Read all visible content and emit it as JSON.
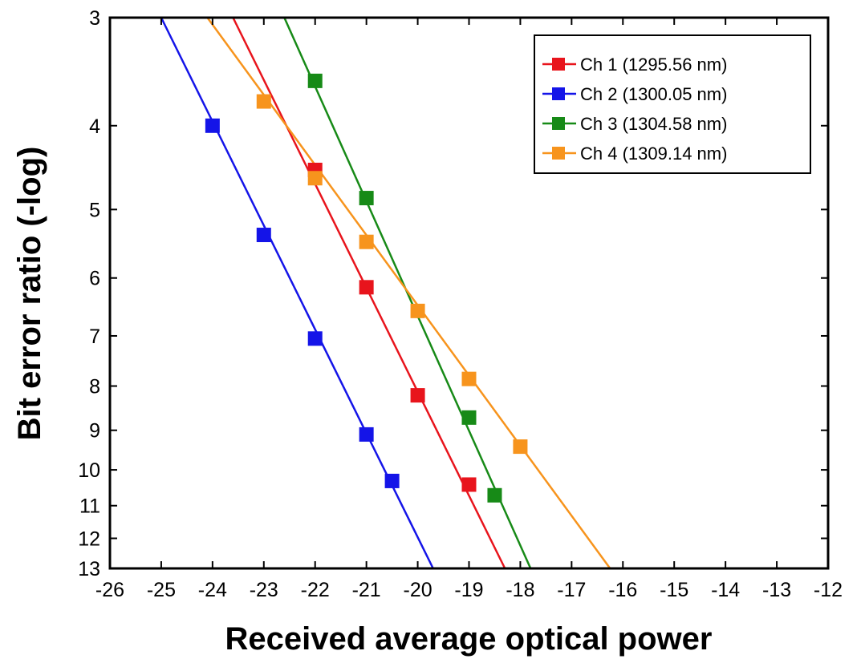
{
  "chart_data": {
    "type": "line",
    "xlabel": "Received average optical power",
    "ylabel": "Bit error ratio (-log)",
    "xlim": [
      -26,
      -12
    ],
    "xticks": [
      -26,
      -25,
      -24,
      -23,
      -22,
      -21,
      -20,
      -19,
      -18,
      -17,
      -16,
      -15,
      -14,
      -13,
      -12
    ],
    "ylim": [
      3,
      13
    ],
    "y_scale": "log of -log(BER) (tick labels show -log BER)",
    "yticks": [
      3,
      4,
      5,
      6,
      7,
      8,
      9,
      10,
      11,
      12,
      13
    ],
    "grid": false,
    "legend_position": "top-right",
    "series": [
      {
        "name": "Ch 1 (1295.56 nm)",
        "color": "#e8141c",
        "points": [
          [
            -22,
            4.5
          ],
          [
            -21,
            6.15
          ],
          [
            -20,
            8.2
          ],
          [
            -19,
            10.4
          ]
        ],
        "fit_line": [
          [
            -23.6,
            3.0
          ],
          [
            -18.3,
            13.0
          ]
        ]
      },
      {
        "name": "Ch 2 (1300.05 nm)",
        "color": "#1414e8",
        "points": [
          [
            -24,
            4.0
          ],
          [
            -23,
            5.35
          ],
          [
            -22,
            7.05
          ],
          [
            -21,
            9.1
          ],
          [
            -20.5,
            10.3
          ]
        ],
        "fit_line": [
          [
            -25.0,
            3.0
          ],
          [
            -19.7,
            13.0
          ]
        ]
      },
      {
        "name": "Ch 3 (1304.58 nm)",
        "color": "#178a17",
        "points": [
          [
            -22,
            3.55
          ],
          [
            -21,
            4.85
          ],
          [
            -19,
            8.7
          ],
          [
            -18.5,
            10.7
          ]
        ],
        "fit_line": [
          [
            -22.6,
            3.0
          ],
          [
            -17.8,
            13.0
          ]
        ]
      },
      {
        "name": "Ch 4 (1309.14 nm)",
        "color": "#f7941d",
        "points": [
          [
            -23,
            3.75
          ],
          [
            -22,
            4.6
          ],
          [
            -21,
            5.45
          ],
          [
            -20,
            6.55
          ],
          [
            -19,
            7.85
          ],
          [
            -18,
            9.4
          ]
        ],
        "fit_line": [
          [
            -24.1,
            3.0
          ],
          [
            -16.25,
            13.0
          ]
        ]
      }
    ]
  }
}
